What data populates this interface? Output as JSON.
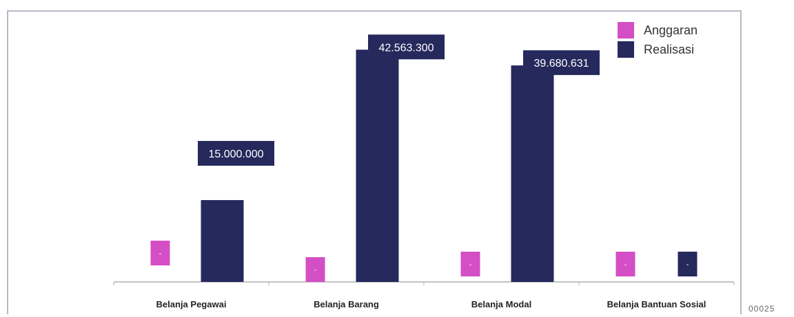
{
  "chart_data": {
    "type": "bar",
    "title": "",
    "xlabel": "",
    "ylabel": "",
    "categories": [
      "Belanja Pegawai",
      "Belanja Barang",
      "Belanja Modal",
      "Belanja Bantuan Sosial"
    ],
    "series": [
      {
        "name": "Anggaran",
        "color": "#d44fc5",
        "values": [
          0,
          0,
          0,
          0
        ],
        "labels": [
          "-",
          "-",
          "-",
          "-"
        ]
      },
      {
        "name": "Realisasi",
        "color": "#26295c",
        "values": [
          15000000,
          42563300,
          39680631,
          0
        ],
        "labels": [
          "15.000.000",
          "42.563.300",
          "39.680.631",
          "-"
        ]
      }
    ],
    "ylim": [
      0,
      46000000
    ],
    "grid": false,
    "legend_position": "top-right"
  },
  "trailing_text": "00025"
}
